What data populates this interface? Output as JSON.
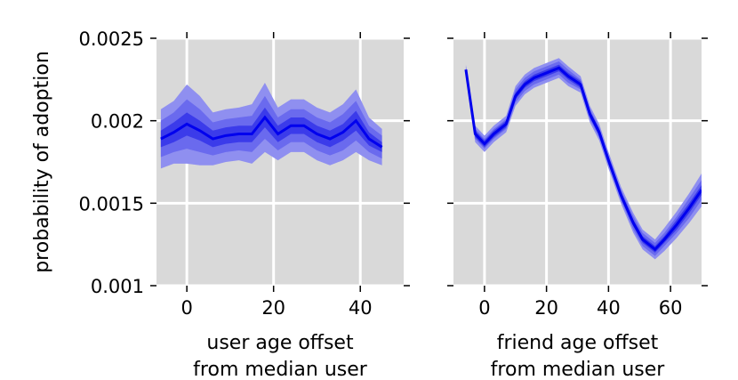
{
  "chart_data": [
    {
      "type": "line",
      "ylabel": "probability of adoption",
      "xlabel_lines": [
        "user age offset",
        "from median user"
      ],
      "xlim": [
        -7,
        50
      ],
      "ylim": [
        0.001,
        0.0025
      ],
      "xticks": [
        0,
        20,
        40
      ],
      "xtick_labels": [
        "0",
        "20",
        "40"
      ],
      "yticks": [
        0.001,
        0.0015,
        0.002,
        0.0025
      ],
      "ytick_labels": [
        "0.001",
        "0.0015",
        "0.002",
        "0.0025"
      ],
      "grid": true,
      "series": [
        {
          "name": "mean",
          "x": [
            -6,
            -3,
            0,
            3,
            6,
            9,
            12,
            15,
            18,
            21,
            24,
            27,
            30,
            33,
            36,
            39,
            42,
            45
          ],
          "y": [
            0.00189,
            0.00193,
            0.00198,
            0.00194,
            0.00189,
            0.00191,
            0.00192,
            0.00192,
            0.00202,
            0.00192,
            0.00197,
            0.00197,
            0.00192,
            0.00189,
            0.00193,
            0.002,
            0.00189,
            0.00184
          ],
          "band_outer": [
            0.00018,
            0.00019,
            0.00024,
            0.00021,
            0.00016,
            0.00016,
            0.00016,
            0.00018,
            0.00021,
            0.00016,
            0.00016,
            0.00016,
            0.00016,
            0.00016,
            0.00017,
            0.00019,
            0.00013,
            0.00011
          ],
          "band_mid": [
            0.00011,
            0.00012,
            0.00015,
            0.00013,
            0.0001,
            0.0001,
            0.0001,
            0.00011,
            0.00013,
            0.0001,
            0.0001,
            0.0001,
            0.0001,
            0.0001,
            0.00011,
            0.00012,
            8e-05,
            7e-05
          ],
          "band_inner": [
            5e-05,
            6e-05,
            7e-05,
            6e-05,
            5e-05,
            5e-05,
            5e-05,
            5e-05,
            6e-05,
            5e-05,
            5e-05,
            5e-05,
            5e-05,
            5e-05,
            5e-05,
            6e-05,
            4e-05,
            3e-05
          ]
        }
      ]
    },
    {
      "type": "line",
      "xlabel_lines": [
        "friend age offset",
        "from median user"
      ],
      "xlim": [
        -10,
        70
      ],
      "ylim": [
        0.001,
        0.0025
      ],
      "xticks": [
        0,
        20,
        40,
        60
      ],
      "xtick_labels": [
        "0",
        "20",
        "40",
        "60"
      ],
      "yticks": [
        0.001,
        0.0015,
        0.002,
        0.0025
      ],
      "grid": true,
      "series": [
        {
          "name": "mean",
          "x": [
            -6,
            -3,
            0,
            3,
            7,
            10,
            13,
            16,
            20,
            24,
            27,
            31,
            34,
            37,
            40,
            44,
            48,
            51,
            55,
            58,
            62,
            66,
            70
          ],
          "y": [
            0.00231,
            0.00192,
            0.00186,
            0.00192,
            0.00198,
            0.00215,
            0.00222,
            0.00226,
            0.00229,
            0.00232,
            0.00227,
            0.00222,
            0.00204,
            0.00193,
            0.00176,
            0.00155,
            0.00138,
            0.00128,
            0.00122,
            0.00128,
            0.00137,
            0.00147,
            0.00158
          ],
          "band_outer": [
            3e-05,
            5e-05,
            5e-05,
            5e-05,
            5e-05,
            6e-05,
            6e-05,
            6e-05,
            6e-05,
            6e-05,
            6e-05,
            5e-05,
            5e-05,
            5e-05,
            5e-05,
            5e-05,
            6e-05,
            6e-05,
            6e-05,
            7e-05,
            8e-05,
            9e-05,
            0.0001
          ],
          "band_mid": [
            2e-05,
            3e-05,
            3e-05,
            3e-05,
            3e-05,
            4e-05,
            4e-05,
            4e-05,
            4e-05,
            4e-05,
            4e-05,
            3e-05,
            3e-05,
            3e-05,
            3e-05,
            3e-05,
            4e-05,
            4e-05,
            4e-05,
            4e-05,
            5e-05,
            6e-05,
            6e-05
          ],
          "band_inner": [
            1e-05,
            2e-05,
            2e-05,
            2e-05,
            2e-05,
            2e-05,
            2e-05,
            2e-05,
            2e-05,
            2e-05,
            2e-05,
            2e-05,
            2e-05,
            2e-05,
            2e-05,
            2e-05,
            2e-05,
            2e-05,
            2e-05,
            2e-05,
            3e-05,
            3e-05,
            3e-05
          ]
        }
      ]
    }
  ],
  "colors": {
    "plot_bg": "#d9d9d9",
    "grid": "#ffffff",
    "line": "#0000ee",
    "band_outer": "#8f8ff0",
    "band_mid": "#6a6aee",
    "band_inner": "#3b3bea"
  }
}
